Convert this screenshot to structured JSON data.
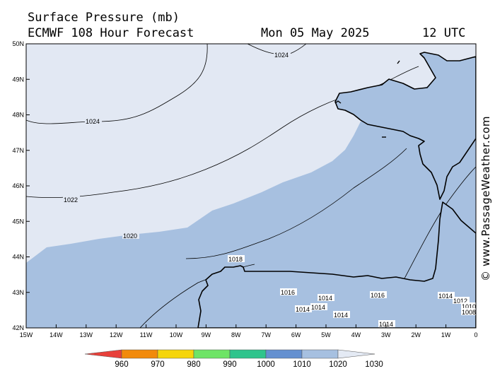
{
  "header": {
    "title": "Surface Pressure (mb)",
    "subtitle": "ECMWF 108 Hour Forecast",
    "date": "Mon 05 May 2025",
    "time": "12 UTC"
  },
  "credit": "© www.PassageWeather.com",
  "colors": {
    "band_1024": "#e2e8f3",
    "band_1020": "#a7c0e0",
    "band_1010": "#a7c0e0",
    "band_low": "#6a95d2",
    "land_edge": "#000000"
  },
  "axes": {
    "lon_labels": [
      "15W",
      "14W",
      "13W",
      "12W",
      "11W",
      "10W",
      "9W",
      "8W",
      "7W",
      "6W",
      "5W",
      "4W",
      "3W",
      "2W",
      "1W",
      "0"
    ],
    "lat_labels": [
      "50N",
      "49N",
      "48N",
      "47N",
      "46N",
      "45N",
      "44N",
      "43N",
      "42N"
    ]
  },
  "isobars": [
    {
      "value": 1024,
      "label": "1024"
    },
    {
      "value": 1024,
      "label": "1024"
    },
    {
      "value": 1022,
      "label": "1022"
    },
    {
      "value": 1020,
      "label": "1020"
    },
    {
      "value": 1018,
      "label": "1018"
    },
    {
      "value": 1016,
      "label": "1016"
    },
    {
      "value": 1016,
      "label": "1016"
    },
    {
      "value": 1014,
      "label": "1014"
    },
    {
      "value": 1014,
      "label": "1014"
    },
    {
      "value": 1014,
      "label": "1014"
    },
    {
      "value": 1014,
      "label": "1014"
    },
    {
      "value": 1014,
      "label": "1014"
    },
    {
      "value": 1014,
      "label": "1014"
    },
    {
      "value": 1012,
      "label": "1012"
    },
    {
      "value": 1010,
      "label": "1010"
    },
    {
      "value": 1008,
      "label": "1008"
    }
  ],
  "scale": {
    "labels": [
      "960",
      "970",
      "980",
      "990",
      "1000",
      "1010",
      "1020",
      "1030"
    ],
    "colors": [
      "#e8403a",
      "#f28a0a",
      "#f5d50a",
      "#6ee466",
      "#2fc48c",
      "#6490d0",
      "#a6c0e0",
      "#e4eaf4"
    ]
  }
}
